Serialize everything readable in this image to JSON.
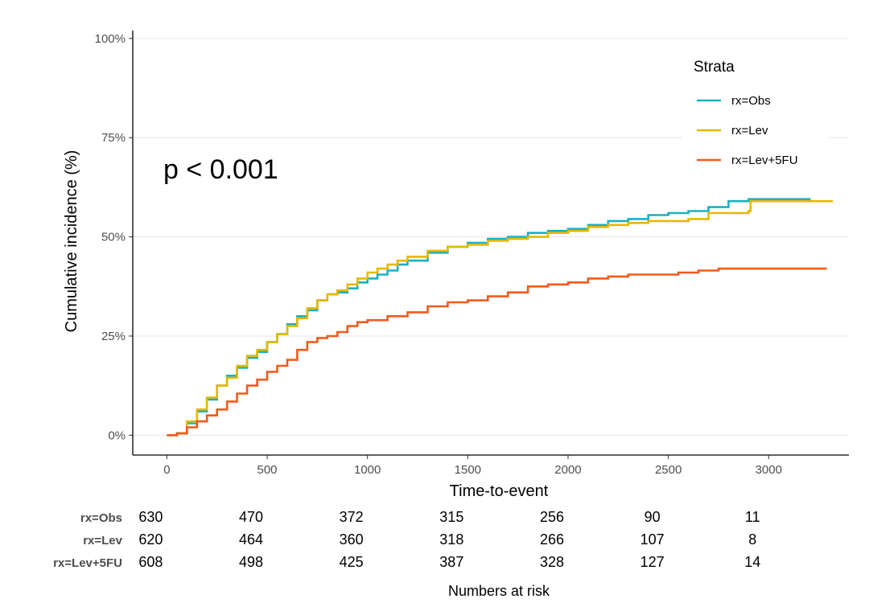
{
  "chart_data": {
    "type": "line",
    "x_ticks": [
      0,
      500,
      1000,
      1500,
      2000,
      2500,
      3000
    ],
    "xlim": [
      -170,
      3400
    ],
    "ylim": [
      -0.05,
      1.02
    ],
    "y_ticks": [
      0,
      0.25,
      0.5,
      0.75,
      1.0
    ],
    "y_tick_labels": [
      "0%",
      "25%",
      "50%",
      "75%",
      "100%"
    ],
    "xlabel": "Time-to-event",
    "ylabel": "Cumulative incidence (%)",
    "grid": "horizontal major",
    "annotation": "p < 0.001",
    "legend": {
      "title": "Strata",
      "position": "top-right"
    },
    "series": [
      {
        "name": "rx=Obs",
        "color": "#1cb0c0",
        "points": [
          [
            0,
            0
          ],
          [
            50,
            0.005
          ],
          [
            100,
            0.03
          ],
          [
            150,
            0.06
          ],
          [
            200,
            0.09
          ],
          [
            250,
            0.125
          ],
          [
            300,
            0.15
          ],
          [
            350,
            0.17
          ],
          [
            400,
            0.195
          ],
          [
            450,
            0.21
          ],
          [
            500,
            0.235
          ],
          [
            550,
            0.255
          ],
          [
            600,
            0.28
          ],
          [
            650,
            0.3
          ],
          [
            700,
            0.315
          ],
          [
            750,
            0.34
          ],
          [
            800,
            0.355
          ],
          [
            850,
            0.36
          ],
          [
            900,
            0.37
          ],
          [
            950,
            0.385
          ],
          [
            1000,
            0.395
          ],
          [
            1050,
            0.405
          ],
          [
            1100,
            0.415
          ],
          [
            1150,
            0.43
          ],
          [
            1200,
            0.44
          ],
          [
            1300,
            0.46
          ],
          [
            1400,
            0.475
          ],
          [
            1500,
            0.485
          ],
          [
            1600,
            0.495
          ],
          [
            1700,
            0.5
          ],
          [
            1800,
            0.51
          ],
          [
            1900,
            0.515
          ],
          [
            2000,
            0.52
          ],
          [
            2100,
            0.53
          ],
          [
            2200,
            0.54
          ],
          [
            2300,
            0.545
          ],
          [
            2400,
            0.555
          ],
          [
            2500,
            0.56
          ],
          [
            2600,
            0.565
          ],
          [
            2700,
            0.575
          ],
          [
            2800,
            0.59
          ],
          [
            2900,
            0.595
          ],
          [
            3100,
            0.595
          ],
          [
            3210,
            0.595
          ]
        ]
      },
      {
        "name": "rx=Lev",
        "color": "#e6b800",
        "points": [
          [
            0,
            0
          ],
          [
            50,
            0.005
          ],
          [
            100,
            0.035
          ],
          [
            150,
            0.065
          ],
          [
            200,
            0.095
          ],
          [
            250,
            0.125
          ],
          [
            300,
            0.145
          ],
          [
            350,
            0.175
          ],
          [
            400,
            0.2
          ],
          [
            450,
            0.215
          ],
          [
            500,
            0.235
          ],
          [
            550,
            0.255
          ],
          [
            600,
            0.275
          ],
          [
            650,
            0.295
          ],
          [
            700,
            0.32
          ],
          [
            750,
            0.34
          ],
          [
            800,
            0.355
          ],
          [
            850,
            0.365
          ],
          [
            900,
            0.38
          ],
          [
            950,
            0.395
          ],
          [
            1000,
            0.41
          ],
          [
            1050,
            0.42
          ],
          [
            1100,
            0.43
          ],
          [
            1150,
            0.44
          ],
          [
            1200,
            0.45
          ],
          [
            1300,
            0.465
          ],
          [
            1400,
            0.475
          ],
          [
            1500,
            0.48
          ],
          [
            1600,
            0.49
          ],
          [
            1700,
            0.495
          ],
          [
            1800,
            0.5
          ],
          [
            1900,
            0.51
          ],
          [
            2000,
            0.515
          ],
          [
            2100,
            0.525
          ],
          [
            2200,
            0.53
          ],
          [
            2300,
            0.535
          ],
          [
            2400,
            0.54
          ],
          [
            2500,
            0.54
          ],
          [
            2600,
            0.545
          ],
          [
            2700,
            0.56
          ],
          [
            2800,
            0.56
          ],
          [
            2900,
            0.565
          ],
          [
            2910,
            0.59
          ],
          [
            3000,
            0.59
          ],
          [
            3320,
            0.59
          ]
        ]
      },
      {
        "name": "rx=Lev+5FU",
        "color": "#f25a1c",
        "points": [
          [
            0,
            0
          ],
          [
            50,
            0.005
          ],
          [
            100,
            0.02
          ],
          [
            150,
            0.035
          ],
          [
            200,
            0.05
          ],
          [
            250,
            0.065
          ],
          [
            300,
            0.085
          ],
          [
            350,
            0.105
          ],
          [
            400,
            0.125
          ],
          [
            450,
            0.14
          ],
          [
            500,
            0.16
          ],
          [
            550,
            0.175
          ],
          [
            600,
            0.19
          ],
          [
            650,
            0.215
          ],
          [
            700,
            0.235
          ],
          [
            750,
            0.245
          ],
          [
            800,
            0.25
          ],
          [
            850,
            0.26
          ],
          [
            900,
            0.275
          ],
          [
            950,
            0.285
          ],
          [
            1000,
            0.29
          ],
          [
            1100,
            0.3
          ],
          [
            1200,
            0.31
          ],
          [
            1300,
            0.325
          ],
          [
            1400,
            0.335
          ],
          [
            1500,
            0.34
          ],
          [
            1600,
            0.35
          ],
          [
            1700,
            0.36
          ],
          [
            1800,
            0.375
          ],
          [
            1900,
            0.38
          ],
          [
            2000,
            0.385
          ],
          [
            2100,
            0.395
          ],
          [
            2200,
            0.4
          ],
          [
            2300,
            0.405
          ],
          [
            2400,
            0.405
          ],
          [
            2500,
            0.405
          ],
          [
            2550,
            0.41
          ],
          [
            2600,
            0.41
          ],
          [
            2650,
            0.415
          ],
          [
            2750,
            0.42
          ],
          [
            3000,
            0.42
          ],
          [
            3290,
            0.42
          ]
        ]
      }
    ],
    "risk_table": {
      "title": "Numbers at risk",
      "times": [
        0,
        500,
        1000,
        1500,
        2000,
        2500,
        3000
      ],
      "rows": [
        {
          "strata": "rx=Obs",
          "values": [
            "630",
            "470",
            "372",
            "315",
            "256",
            "90",
            "11"
          ]
        },
        {
          "strata": "rx=Lev",
          "values": [
            "620",
            "464",
            "360",
            "318",
            "266",
            "107",
            "8"
          ]
        },
        {
          "strata": "rx=Lev+5FU",
          "values": [
            "608",
            "498",
            "425",
            "387",
            "328",
            "127",
            "14"
          ]
        }
      ]
    }
  }
}
